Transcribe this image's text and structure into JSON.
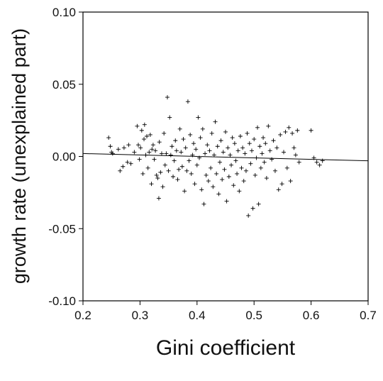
{
  "chart_data": {
    "type": "scatter",
    "xlabel": "Gini coefficient",
    "ylabel": "growth rate (unexplained part)",
    "xlim": [
      0.2,
      0.7
    ],
    "ylim": [
      -0.1,
      0.1
    ],
    "xticks": [
      "0.2",
      "0.3",
      "0.4",
      "0.5",
      "0.6",
      "0.7"
    ],
    "yticks": [
      "0.10",
      "0.05",
      "0.00",
      "-0.05",
      "-0.10"
    ],
    "marker": "plus",
    "grid": false,
    "trend_line": {
      "x": [
        0.2,
        0.7
      ],
      "y": [
        0.002,
        -0.003
      ]
    },
    "points": [
      [
        0.245,
        0.013
      ],
      [
        0.248,
        0.007
      ],
      [
        0.25,
        0.003
      ],
      [
        0.252,
        0.002
      ],
      [
        0.262,
        0.005
      ],
      [
        0.265,
        -0.01
      ],
      [
        0.27,
        -0.007
      ],
      [
        0.272,
        0.006
      ],
      [
        0.278,
        -0.004
      ],
      [
        0.28,
        0.008
      ],
      [
        0.284,
        -0.005
      ],
      [
        0.29,
        0.003
      ],
      [
        0.295,
        0.021
      ],
      [
        0.297,
        0.008
      ],
      [
        0.299,
        -0.002
      ],
      [
        0.301,
        0.006
      ],
      [
        0.303,
        0.018
      ],
      [
        0.305,
        -0.012
      ],
      [
        0.307,
        0.012
      ],
      [
        0.308,
        0.022
      ],
      [
        0.31,
        0.001
      ],
      [
        0.312,
        0.014
      ],
      [
        0.314,
        -0.008
      ],
      [
        0.316,
        0.003
      ],
      [
        0.318,
        0.015
      ],
      [
        0.32,
        -0.019
      ],
      [
        0.321,
        0.005
      ],
      [
        0.323,
        0.008
      ],
      [
        0.325,
        -0.002
      ],
      [
        0.327,
        0.004
      ],
      [
        0.329,
        -0.013
      ],
      [
        0.331,
        -0.015
      ],
      [
        0.333,
        -0.029
      ],
      [
        0.334,
        0.01
      ],
      [
        0.336,
        -0.011
      ],
      [
        0.338,
        0.002
      ],
      [
        0.34,
        -0.021
      ],
      [
        0.342,
        0.016
      ],
      [
        0.344,
        -0.006
      ],
      [
        0.346,
        0.002
      ],
      [
        0.348,
        0.041
      ],
      [
        0.35,
        -0.01
      ],
      [
        0.352,
        0.027
      ],
      [
        0.354,
        0.001
      ],
      [
        0.356,
        0.007
      ],
      [
        0.358,
        -0.014
      ],
      [
        0.36,
        -0.003
      ],
      [
        0.362,
        0.011
      ],
      [
        0.364,
        0.004
      ],
      [
        0.366,
        -0.016
      ],
      [
        0.368,
        -0.009
      ],
      [
        0.37,
        0.019
      ],
      [
        0.372,
        0.003
      ],
      [
        0.374,
        -0.007
      ],
      [
        0.376,
        0.012
      ],
      [
        0.378,
        -0.024
      ],
      [
        0.38,
        0.006
      ],
      [
        0.382,
        -0.01
      ],
      [
        0.384,
        0.038
      ],
      [
        0.386,
        -0.003
      ],
      [
        0.388,
        0.015
      ],
      [
        0.39,
        -0.012
      ],
      [
        0.392,
        0.001
      ],
      [
        0.394,
        0.009
      ],
      [
        0.396,
        -0.019
      ],
      [
        0.398,
        0.005
      ],
      [
        0.4,
        -0.006
      ],
      [
        0.402,
        0.027
      ],
      [
        0.404,
        -0.001
      ],
      [
        0.406,
        0.013
      ],
      [
        0.408,
        -0.023
      ],
      [
        0.41,
        0.019
      ],
      [
        0.412,
        -0.033
      ],
      [
        0.414,
        0.002
      ],
      [
        0.416,
        -0.013
      ],
      [
        0.418,
        0.008
      ],
      [
        0.42,
        -0.017
      ],
      [
        0.422,
        0.004
      ],
      [
        0.424,
        -0.008
      ],
      [
        0.426,
        0.016
      ],
      [
        0.428,
        -0.021
      ],
      [
        0.43,
        0.001
      ],
      [
        0.432,
        0.024
      ],
      [
        0.434,
        -0.012
      ],
      [
        0.436,
        0.007
      ],
      [
        0.438,
        -0.026
      ],
      [
        0.44,
        -0.004
      ],
      [
        0.442,
        0.011
      ],
      [
        0.444,
        -0.016
      ],
      [
        0.446,
        0.003
      ],
      [
        0.448,
        -0.009
      ],
      [
        0.45,
        0.017
      ],
      [
        0.452,
        -0.031
      ],
      [
        0.454,
        0.006
      ],
      [
        0.456,
        -0.014
      ],
      [
        0.458,
        0.001
      ],
      [
        0.46,
        -0.006
      ],
      [
        0.462,
        0.013
      ],
      [
        0.464,
        -0.02
      ],
      [
        0.466,
        0.009
      ],
      [
        0.468,
        -0.003
      ],
      [
        0.47,
        -0.012
      ],
      [
        0.472,
        0.004
      ],
      [
        0.474,
        -0.024
      ],
      [
        0.476,
        0.014
      ],
      [
        0.478,
        -0.008
      ],
      [
        0.48,
        0.006
      ],
      [
        0.482,
        -0.017
      ],
      [
        0.484,
        0.002
      ],
      [
        0.486,
        -0.01
      ],
      [
        0.488,
        0.016
      ],
      [
        0.49,
        -0.041
      ],
      [
        0.492,
        0.009
      ],
      [
        0.494,
        -0.005
      ],
      [
        0.496,
        0.004
      ],
      [
        0.498,
        -0.036
      ],
      [
        0.5,
        0.012
      ],
      [
        0.502,
        -0.013
      ],
      [
        0.504,
        -0.001
      ],
      [
        0.506,
        0.02
      ],
      [
        0.508,
        -0.033
      ],
      [
        0.51,
        0.007
      ],
      [
        0.512,
        -0.008
      ],
      [
        0.514,
        0.002
      ],
      [
        0.516,
        0.013
      ],
      [
        0.518,
        -0.004
      ],
      [
        0.52,
        0.009
      ],
      [
        0.522,
        -0.015
      ],
      [
        0.525,
        0.021
      ],
      [
        0.528,
        0.004
      ],
      [
        0.531,
        -0.002
      ],
      [
        0.534,
        0.011
      ],
      [
        0.537,
        -0.01
      ],
      [
        0.54,
        0.006
      ],
      [
        0.543,
        -0.023
      ],
      [
        0.546,
        0.015
      ],
      [
        0.549,
        -0.019
      ],
      [
        0.552,
        0.003
      ],
      [
        0.555,
        0.017
      ],
      [
        0.558,
        -0.008
      ],
      [
        0.561,
        0.02
      ],
      [
        0.564,
        -0.017
      ],
      [
        0.567,
        0.016
      ],
      [
        0.57,
        0.006
      ],
      [
        0.573,
        0.001
      ],
      [
        0.576,
        0.018
      ],
      [
        0.579,
        -0.004
      ],
      [
        0.6,
        0.018
      ],
      [
        0.605,
        -0.001
      ],
      [
        0.61,
        -0.004
      ],
      [
        0.615,
        -0.006
      ],
      [
        0.62,
        -0.003
      ]
    ]
  }
}
